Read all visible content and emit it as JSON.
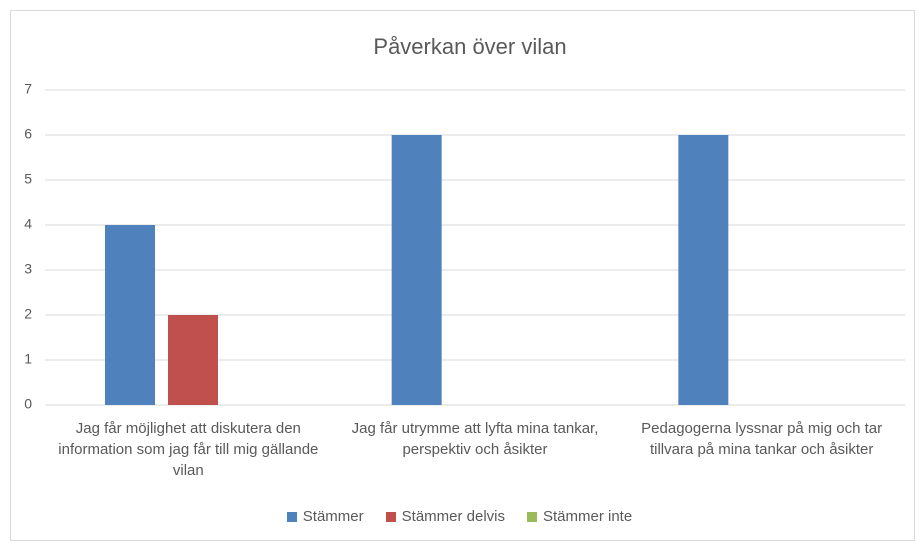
{
  "chart_data": {
    "type": "bar",
    "title": "Påverkan över vilan",
    "categories": [
      "Jag får möjlighet att diskutera den information som jag får till mig gällande vilan",
      "Jag får utrymme att lyfta mina tankar, perspektiv och åsikter",
      "Pedagogerna lyssnar på mig och tar tillvara på mina tankar och åsikter"
    ],
    "series": [
      {
        "name": "Stämmer",
        "color": "#4f81bd",
        "values": [
          4,
          6,
          6
        ]
      },
      {
        "name": "Stämmer delvis",
        "color": "#c0504d",
        "values": [
          2,
          0,
          0
        ]
      },
      {
        "name": "Stämmer inte",
        "color": "#9bbb59",
        "values": [
          0,
          0,
          0
        ]
      }
    ],
    "ylim": [
      0,
      7
    ],
    "yticks": [
      0,
      1,
      2,
      3,
      4,
      5,
      6,
      7
    ],
    "grid": true,
    "legend": "bottom"
  }
}
